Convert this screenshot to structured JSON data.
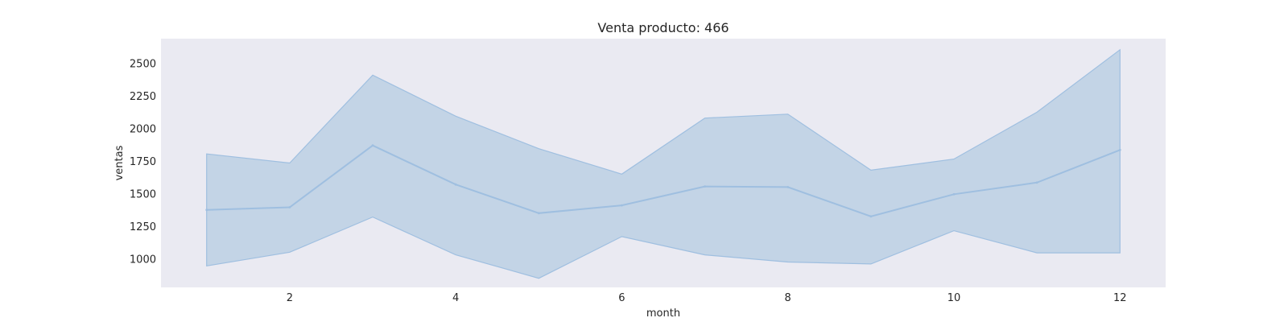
{
  "chart_data": {
    "type": "line",
    "title": "Venta producto: 466",
    "xlabel": "month",
    "ylabel": "ventas",
    "x": [
      1,
      2,
      3,
      4,
      5,
      6,
      7,
      8,
      9,
      10,
      11,
      12
    ],
    "series": [
      {
        "values": [
          1375,
          1395,
          1870,
          1570,
          1350,
          1410,
          1555,
          1550,
          1325,
          1495,
          1585,
          1835
        ],
        "upper": [
          1805,
          1735,
          2410,
          2095,
          1845,
          1650,
          2080,
          2110,
          1680,
          1765,
          2125,
          2605
        ],
        "lower": [
          945,
          1050,
          1320,
          1030,
          850,
          1170,
          1030,
          975,
          960,
          1215,
          1045,
          1045
        ]
      }
    ],
    "x_ticks": [
      2,
      4,
      6,
      8,
      10,
      12
    ],
    "y_ticks": [
      1000,
      1250,
      1500,
      1750,
      2000,
      2250,
      2500
    ],
    "xlim": [
      0.45,
      12.55
    ],
    "ylim": [
      780,
      2690
    ],
    "grid": false,
    "colors": {
      "plot_background": "#eaeaf2",
      "band_fill": "#a9c4de",
      "band_edge": "#9fbfe0",
      "line": "#9fbfe0",
      "text": "#262626"
    }
  }
}
